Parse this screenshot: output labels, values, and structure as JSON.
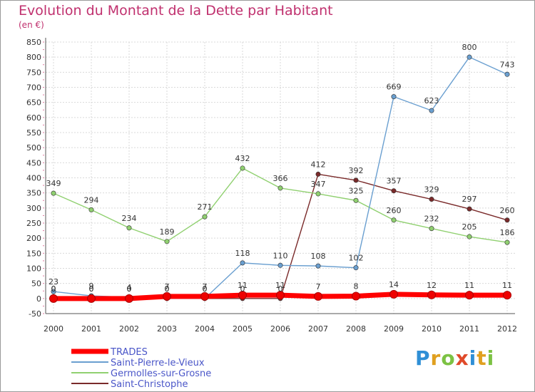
{
  "title": "Evolution du Montant de la Dette par Habitant",
  "unit": "(en €)",
  "logo": {
    "text": "Proxiti",
    "colors": [
      "#2f8fd6",
      "#e0a020",
      "#7cc243",
      "#e04a2a",
      "#2f8fd6",
      "#e0a020",
      "#7cc243"
    ]
  },
  "chart_data": {
    "type": "line",
    "title": "Evolution du Montant de la Dette par Habitant",
    "ylabel": "(en €)",
    "xlabel": "",
    "x": [
      "2000",
      "2001",
      "2002",
      "2003",
      "2004",
      "2005",
      "2006",
      "2007",
      "2008",
      "2009",
      "2010",
      "2011",
      "2012"
    ],
    "ylim": [
      -50,
      850
    ],
    "yticks": [
      -50,
      0,
      50,
      100,
      150,
      200,
      250,
      300,
      350,
      400,
      450,
      500,
      550,
      600,
      650,
      700,
      750,
      800,
      850
    ],
    "grid": true,
    "legend_position": "bottom-left",
    "series": [
      {
        "name": "TRADES",
        "color": "#ff0000",
        "values": [
          0,
          0,
          0,
          7,
          7,
          11,
          11,
          7,
          8,
          14,
          12,
          11,
          11
        ],
        "labels": [
          "0",
          "0",
          "0",
          "7",
          "7",
          "11",
          "11",
          "7",
          "8",
          "14",
          "12",
          "11",
          "11"
        ]
      },
      {
        "name": "Saint-Pierre-le-Vieux",
        "color": "#6a9fd0",
        "values": [
          23,
          9,
          4,
          0,
          0,
          118,
          110,
          108,
          102,
          669,
          623,
          800,
          743
        ],
        "labels": [
          "23",
          "9",
          "4",
          "0",
          "0",
          "118",
          "110",
          "108",
          "102",
          "669",
          "623",
          "800",
          "743"
        ]
      },
      {
        "name": "Germolles-sur-Grosne",
        "color": "#90d070",
        "values": [
          349,
          294,
          234,
          189,
          271,
          432,
          366,
          347,
          325,
          260,
          232,
          205,
          186
        ],
        "labels": [
          "349",
          "294",
          "234",
          "189",
          "271",
          "432",
          "366",
          "347",
          "325",
          "260",
          "232",
          "205",
          "186"
        ]
      },
      {
        "name": "Saint-Christophe",
        "color": "#7a2a2a",
        "values": [
          0,
          0,
          0,
          0,
          0,
          0,
          0,
          412,
          392,
          357,
          329,
          297,
          260
        ],
        "labels": [
          "0",
          "0",
          "0",
          "0",
          "0",
          "0",
          "0",
          "412",
          "392",
          "357",
          "329",
          "297",
          "260"
        ]
      }
    ]
  }
}
